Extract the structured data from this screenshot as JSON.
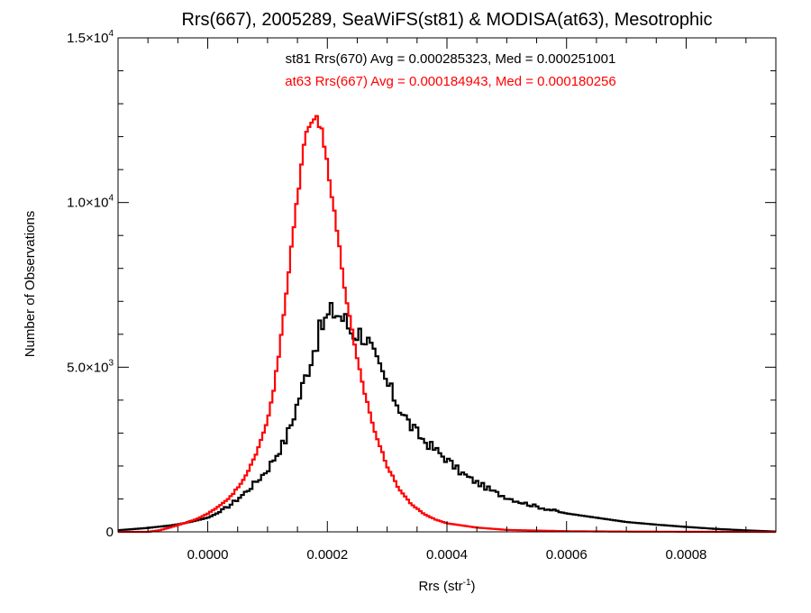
{
  "chart_data": {
    "type": "line",
    "title": "Rrs(667), 2005289, SeaWiFS(st81) & MODISA(at63), Mesotrophic",
    "xlabel": {
      "base": "Rrs (str",
      "sup": "-1",
      "end": ")"
    },
    "ylabel": "Number of Observations",
    "xlim": [
      -0.00015,
      0.00095
    ],
    "ylim": [
      0,
      15000
    ],
    "x_ticks": [
      {
        "value": 0.0,
        "label": "0.0000"
      },
      {
        "value": 0.0002,
        "label": "0.0002"
      },
      {
        "value": 0.0004,
        "label": "0.0004"
      },
      {
        "value": 0.0006,
        "label": "0.0006"
      },
      {
        "value": 0.0008,
        "label": "0.0008"
      }
    ],
    "y_ticks": [
      {
        "value": 0,
        "label": "0",
        "exp": ""
      },
      {
        "value": 5000,
        "label": "5.0×10",
        "exp": "3"
      },
      {
        "value": 10000,
        "label": "1.0×10",
        "exp": "4"
      },
      {
        "value": 15000,
        "label": "1.5×10",
        "exp": "4"
      }
    ],
    "annotations": [
      {
        "text": "st81 Rrs(670) Avg = 0.000285323, Med = 0.000251001",
        "color": "#000000"
      },
      {
        "text": "at63 Rrs(667) Avg = 0.000184943, Med = 0.000180256",
        "color": "#ff0000"
      }
    ],
    "series": [
      {
        "id": "st81",
        "color": "#000000",
        "style": "step",
        "points": [
          [
            -0.00015,
            50
          ],
          [
            -0.00012,
            90
          ],
          [
            -0.0001,
            120
          ],
          [
            -8e-05,
            160
          ],
          [
            -6e-05,
            200
          ],
          [
            -4e-05,
            260
          ],
          [
            -2e-05,
            340
          ],
          [
            0.0,
            430
          ],
          [
            2e-05,
            600
          ],
          [
            4e-05,
            850
          ],
          [
            6e-05,
            1150
          ],
          [
            8e-05,
            1500
          ],
          [
            0.0001,
            1900
          ],
          [
            0.00011,
            2200
          ],
          [
            0.00012,
            2500
          ],
          [
            0.00013,
            2800
          ],
          [
            0.00014,
            3300
          ],
          [
            0.00015,
            3900
          ],
          [
            0.00016,
            4500
          ],
          [
            0.00017,
            5100
          ],
          [
            0.00018,
            5700
          ],
          [
            0.00019,
            6200
          ],
          [
            0.0002,
            6500
          ],
          [
            0.00021,
            6700
          ],
          [
            0.00022,
            6600
          ],
          [
            0.00023,
            6400
          ],
          [
            0.00024,
            6100
          ],
          [
            0.00025,
            6050
          ],
          [
            0.00026,
            6000
          ],
          [
            0.00027,
            5700
          ],
          [
            0.00028,
            5200
          ],
          [
            0.0003,
            4500
          ],
          [
            0.00032,
            3800
          ],
          [
            0.00034,
            3200
          ],
          [
            0.00036,
            2800
          ],
          [
            0.00038,
            2500
          ],
          [
            0.0004,
            2200
          ],
          [
            0.00042,
            1850
          ],
          [
            0.00044,
            1600
          ],
          [
            0.00046,
            1400
          ],
          [
            0.00048,
            1200
          ],
          [
            0.0005,
            1050
          ],
          [
            0.00052,
            920
          ],
          [
            0.00055,
            770
          ],
          [
            0.00058,
            640
          ],
          [
            0.0006,
            560
          ],
          [
            0.00065,
            430
          ],
          [
            0.0007,
            300
          ],
          [
            0.00075,
            220
          ],
          [
            0.0008,
            150
          ],
          [
            0.00085,
            90
          ],
          [
            0.0009,
            45
          ],
          [
            0.00095,
            10
          ]
        ]
      },
      {
        "id": "at63",
        "color": "#ff0000",
        "style": "step",
        "points": [
          [
            -0.00015,
            0
          ],
          [
            -0.0001,
            0
          ],
          [
            -8e-05,
            50
          ],
          [
            -6e-05,
            150
          ],
          [
            -4e-05,
            260
          ],
          [
            -2e-05,
            380
          ],
          [
            0.0,
            550
          ],
          [
            2e-05,
            800
          ],
          [
            4e-05,
            1100
          ],
          [
            6e-05,
            1600
          ],
          [
            8e-05,
            2300
          ],
          [
            0.0001,
            3400
          ],
          [
            0.00011,
            4300
          ],
          [
            0.00012,
            5500
          ],
          [
            0.00013,
            7000
          ],
          [
            0.00014,
            8600
          ],
          [
            0.00015,
            10200
          ],
          [
            0.00016,
            11600
          ],
          [
            0.00017,
            12500
          ],
          [
            0.00018,
            12700
          ],
          [
            0.00019,
            12200
          ],
          [
            0.0002,
            11200
          ],
          [
            0.00021,
            10000
          ],
          [
            0.00022,
            8600
          ],
          [
            0.00023,
            7300
          ],
          [
            0.00024,
            6200
          ],
          [
            0.00025,
            5200
          ],
          [
            0.00026,
            4400
          ],
          [
            0.00027,
            3700
          ],
          [
            0.00028,
            3000
          ],
          [
            0.0003,
            2000
          ],
          [
            0.00032,
            1300
          ],
          [
            0.00034,
            850
          ],
          [
            0.00036,
            560
          ],
          [
            0.00038,
            380
          ],
          [
            0.0004,
            260
          ],
          [
            0.00045,
            130
          ],
          [
            0.0005,
            60
          ],
          [
            0.0006,
            20
          ],
          [
            0.0007,
            8
          ],
          [
            0.0008,
            4
          ],
          [
            0.00095,
            0
          ]
        ]
      }
    ]
  }
}
